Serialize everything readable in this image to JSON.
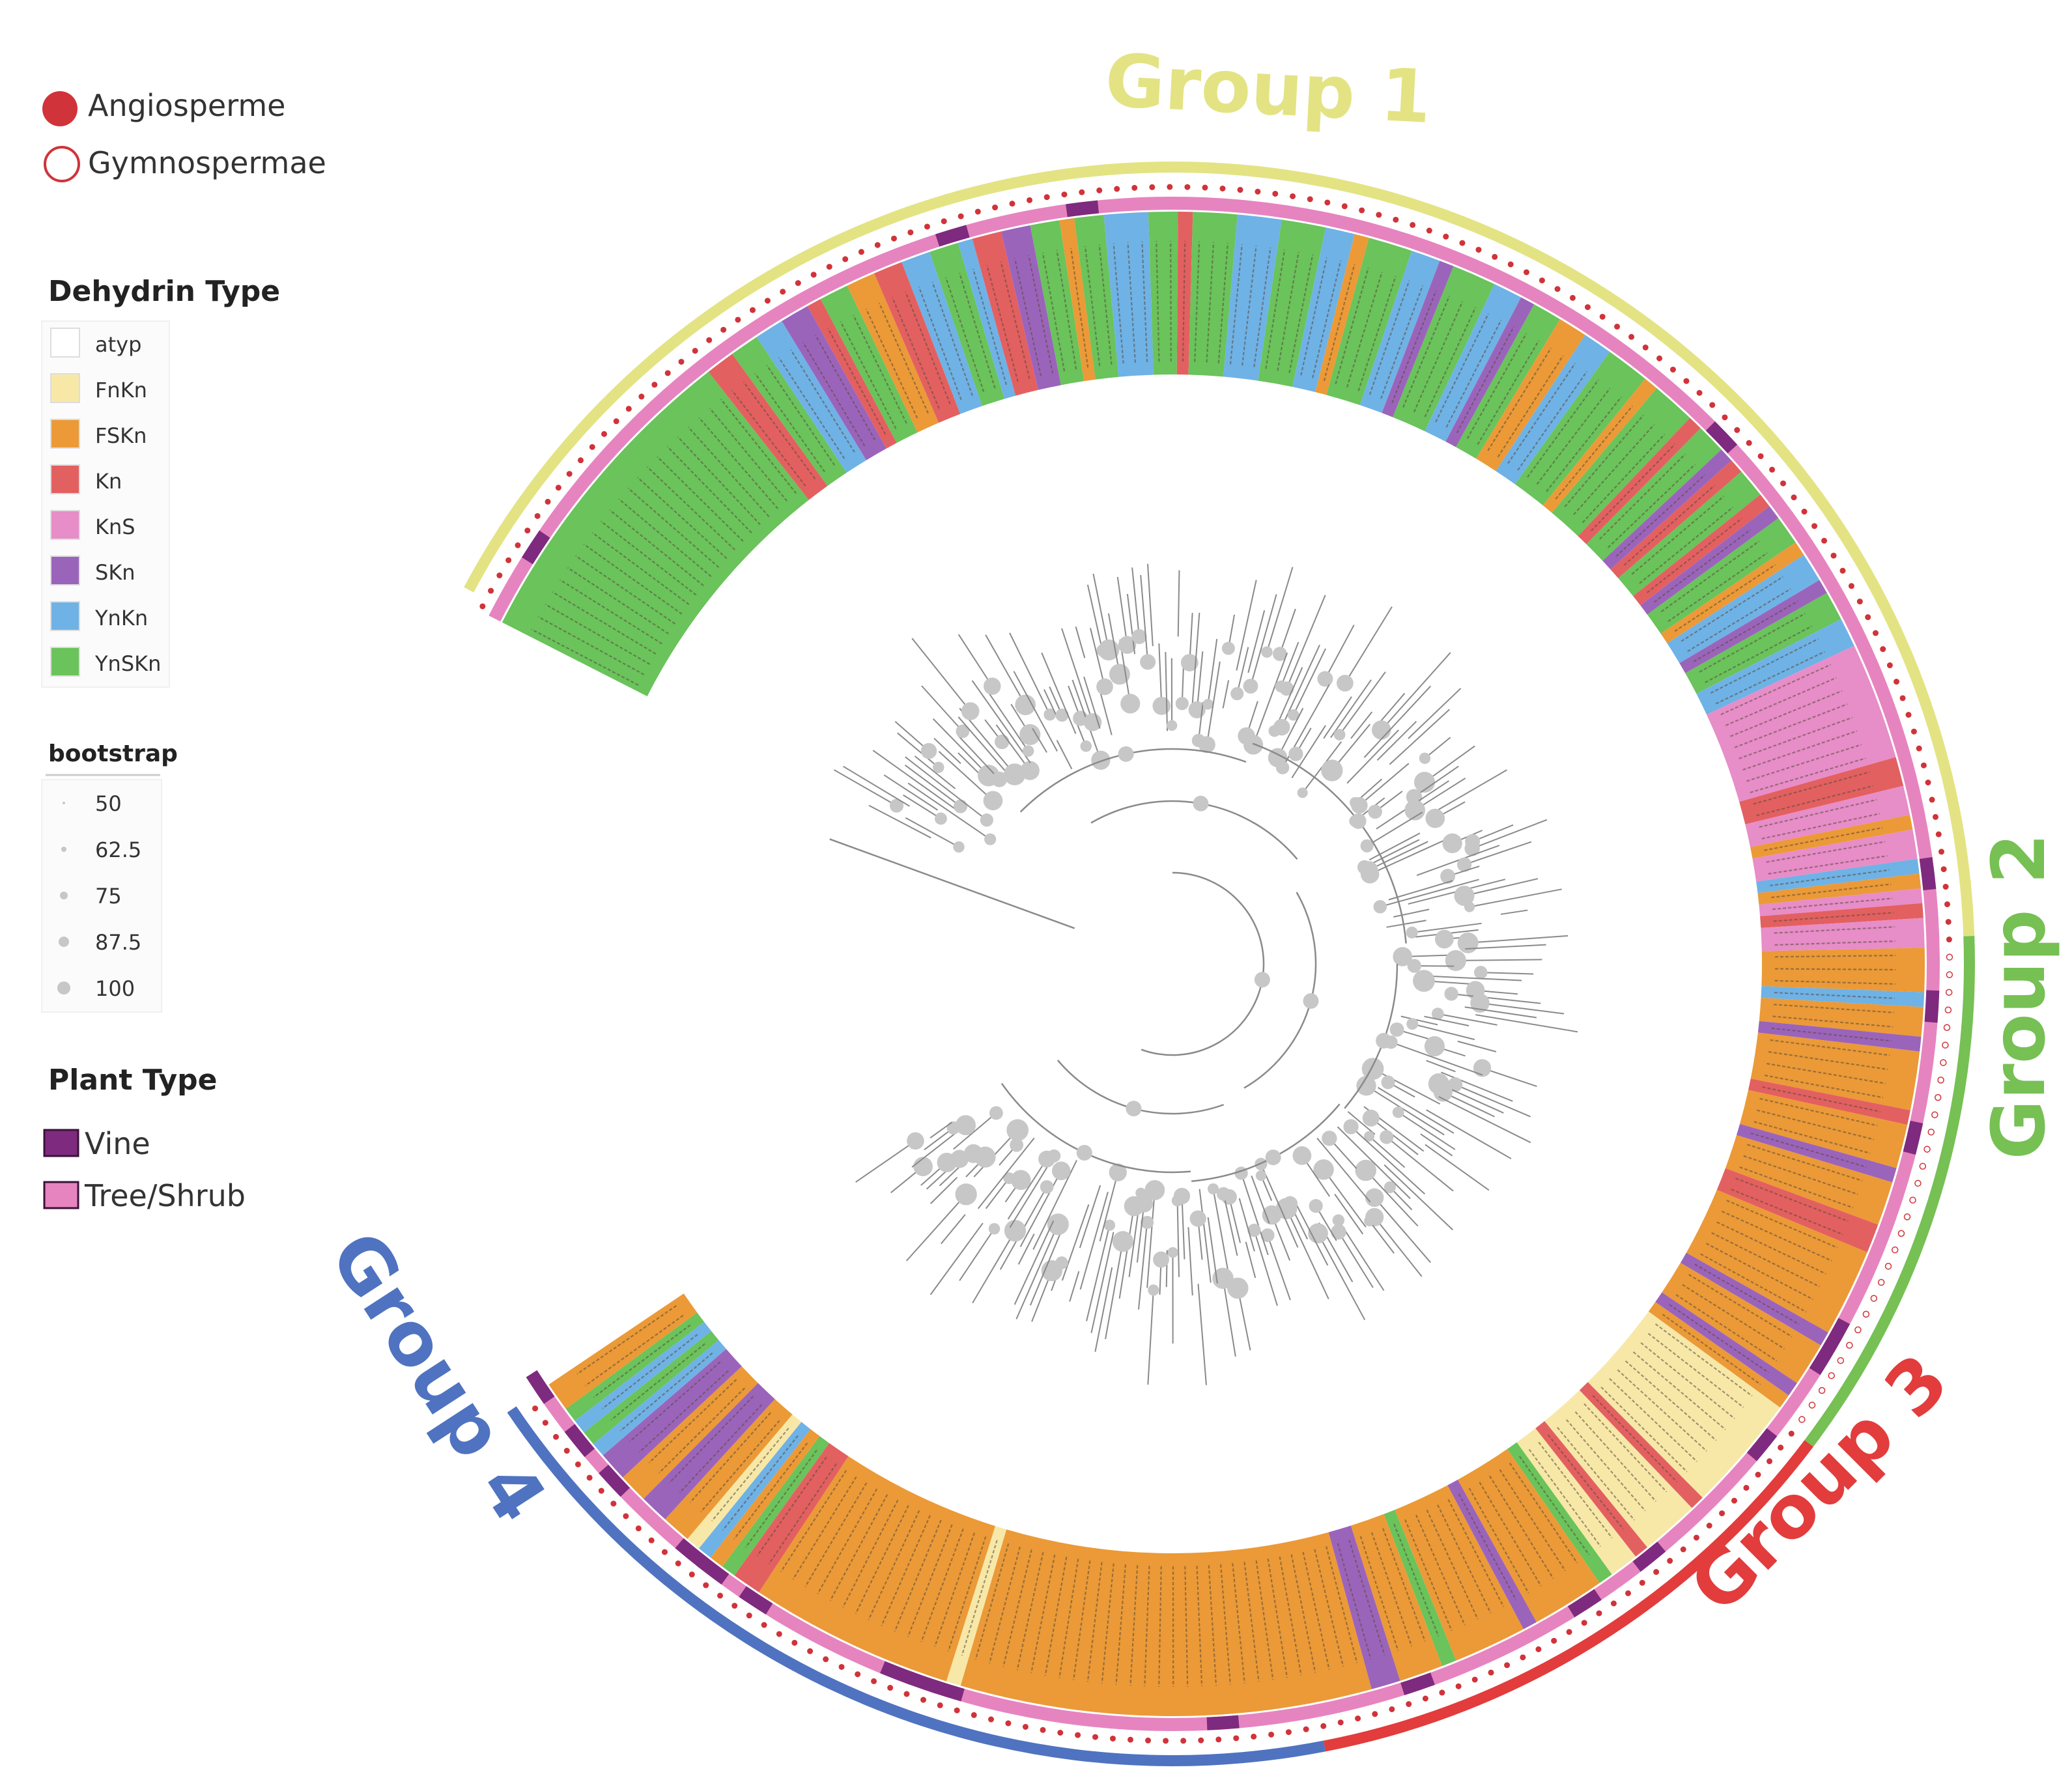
{
  "legend": {
    "clade": {
      "items": [
        {
          "label": "Angiosperme",
          "color": "#d0333a",
          "style": "filled"
        },
        {
          "label": "Gymnospermae",
          "color": "#d0333a",
          "style": "outline"
        }
      ]
    },
    "dehydrin": {
      "title": "Dehydrin Type",
      "items": [
        {
          "label": "atyp",
          "color": "#ffffff"
        },
        {
          "label": "FnKn",
          "color": "#f7e8a8"
        },
        {
          "label": "FSKn",
          "color": "#eb9a37"
        },
        {
          "label": "Kn",
          "color": "#e36060"
        },
        {
          "label": "KnS",
          "color": "#e78dc8"
        },
        {
          "label": "SKn",
          "color": "#9b64bb"
        },
        {
          "label": "YnKn",
          "color": "#6fb2e6"
        },
        {
          "label": "YnSKn",
          "color": "#6ac35b"
        }
      ]
    },
    "bootstrap": {
      "title": "bootstrap",
      "items": [
        "50",
        "62.5",
        "75",
        "87.5",
        "100"
      ]
    },
    "plant": {
      "title": "Plant Type",
      "items": [
        {
          "label": "Vine",
          "color": "#7e2a7e"
        },
        {
          "label": "Tree/Shrub",
          "color": "#e684c0"
        }
      ]
    }
  },
  "groups": [
    {
      "label": "Group 1",
      "color": "#e3e384"
    },
    {
      "label": "Group 2",
      "color": "#76c054"
    },
    {
      "label": "Group 3",
      "color": "#e23c3c"
    },
    {
      "label": "Group 4",
      "color": "#4f73c0"
    }
  ],
  "colors": {
    "branch": "#8a8a8a",
    "node": "#c7c7c7",
    "plant_outline": "#d0333a"
  }
}
